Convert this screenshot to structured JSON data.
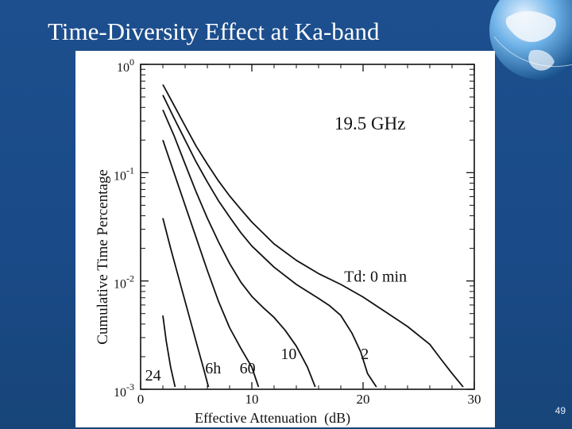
{
  "slide": {
    "title": "Time-Diversity Effect at Ka-band",
    "page_number": "49"
  },
  "colors": {
    "background": "#1d4f8e",
    "panel": "#ffffff",
    "ink": "#111111"
  },
  "chart_data": {
    "type": "line",
    "annotation": "19.5 GHz",
    "xlabel": "Effective Attenuation  (dB)",
    "ylabel_parts": [
      "Cumulative",
      "Time",
      "Percentage"
    ],
    "xlim": [
      0,
      30
    ],
    "xticks": [
      "0",
      "10",
      "20",
      "30"
    ],
    "yscale": "log",
    "ylim": [
      0.001,
      1
    ],
    "yticks": [
      {
        "value": 1,
        "mantissa": "10",
        "exp": "0"
      },
      {
        "value": 0.1,
        "mantissa": "10",
        "exp": "-1"
      },
      {
        "value": 0.01,
        "mantissa": "10",
        "exp": "-2"
      },
      {
        "value": 0.001,
        "mantissa": "10",
        "exp": "-3"
      }
    ],
    "series": [
      {
        "name": "Td: 0 min",
        "label_at": [
          18.3,
          0.0099
        ],
        "points": [
          [
            2.0,
            0.65
          ],
          [
            3,
            0.42
          ],
          [
            4,
            0.27
          ],
          [
            5,
            0.175
          ],
          [
            6,
            0.12
          ],
          [
            7,
            0.084
          ],
          [
            8,
            0.061
          ],
          [
            9,
            0.046
          ],
          [
            10,
            0.035
          ],
          [
            12,
            0.022
          ],
          [
            14,
            0.0155
          ],
          [
            16,
            0.0117
          ],
          [
            18,
            0.0093
          ],
          [
            20,
            0.0071
          ],
          [
            22,
            0.0052
          ],
          [
            24,
            0.0038
          ],
          [
            26,
            0.0026
          ],
          [
            27,
            0.0019
          ],
          [
            28,
            0.0014
          ],
          [
            29,
            0.00105
          ]
        ]
      },
      {
        "name": "2",
        "label_at": [
          19.8,
          0.0019
        ],
        "points": [
          [
            2.0,
            0.52
          ],
          [
            3,
            0.32
          ],
          [
            4,
            0.2
          ],
          [
            5,
            0.125
          ],
          [
            6,
            0.082
          ],
          [
            7,
            0.055
          ],
          [
            8,
            0.039
          ],
          [
            9,
            0.028
          ],
          [
            10,
            0.021
          ],
          [
            12,
            0.0134
          ],
          [
            14,
            0.0093
          ],
          [
            16,
            0.0069
          ],
          [
            17,
            0.0059
          ],
          [
            18,
            0.0048
          ],
          [
            19,
            0.0033
          ],
          [
            19.8,
            0.0022
          ],
          [
            20.4,
            0.0014
          ],
          [
            21.2,
            0.00105
          ]
        ]
      },
      {
        "name": "10",
        "label_at": [
          12.6,
          0.0019
        ],
        "points": [
          [
            2.0,
            0.38
          ],
          [
            3,
            0.22
          ],
          [
            4,
            0.12
          ],
          [
            5,
            0.066
          ],
          [
            6,
            0.038
          ],
          [
            7,
            0.023
          ],
          [
            8,
            0.0145
          ],
          [
            9,
            0.0098
          ],
          [
            10,
            0.0072
          ],
          [
            11,
            0.0057
          ],
          [
            12,
            0.0046
          ],
          [
            13,
            0.0035
          ],
          [
            14,
            0.0025
          ],
          [
            15,
            0.0016
          ],
          [
            15.7,
            0.00105
          ]
        ]
      },
      {
        "name": "60",
        "label_at": [
          8.9,
          0.0014
        ],
        "points": [
          [
            2.0,
            0.2
          ],
          [
            3,
            0.1
          ],
          [
            4,
            0.05
          ],
          [
            5,
            0.025
          ],
          [
            6,
            0.0125
          ],
          [
            7,
            0.0065
          ],
          [
            8,
            0.0037
          ],
          [
            9,
            0.0024
          ],
          [
            10,
            0.0016
          ],
          [
            10.6,
            0.00105
          ]
        ]
      },
      {
        "name": "6h",
        "label_at": [
          5.8,
          0.0014
        ],
        "points": [
          [
            2.0,
            0.038
          ],
          [
            2.7,
            0.02
          ],
          [
            3.5,
            0.01
          ],
          [
            4.3,
            0.005
          ],
          [
            5.1,
            0.0025
          ],
          [
            5.7,
            0.0015
          ],
          [
            6.1,
            0.00105
          ]
        ]
      },
      {
        "name": "24",
        "label_at": [
          0.4,
          0.0012
        ],
        "points": [
          [
            2.0,
            0.0048
          ],
          [
            2.3,
            0.0028
          ],
          [
            2.7,
            0.0016
          ],
          [
            3.1,
            0.00105
          ]
        ]
      }
    ]
  }
}
